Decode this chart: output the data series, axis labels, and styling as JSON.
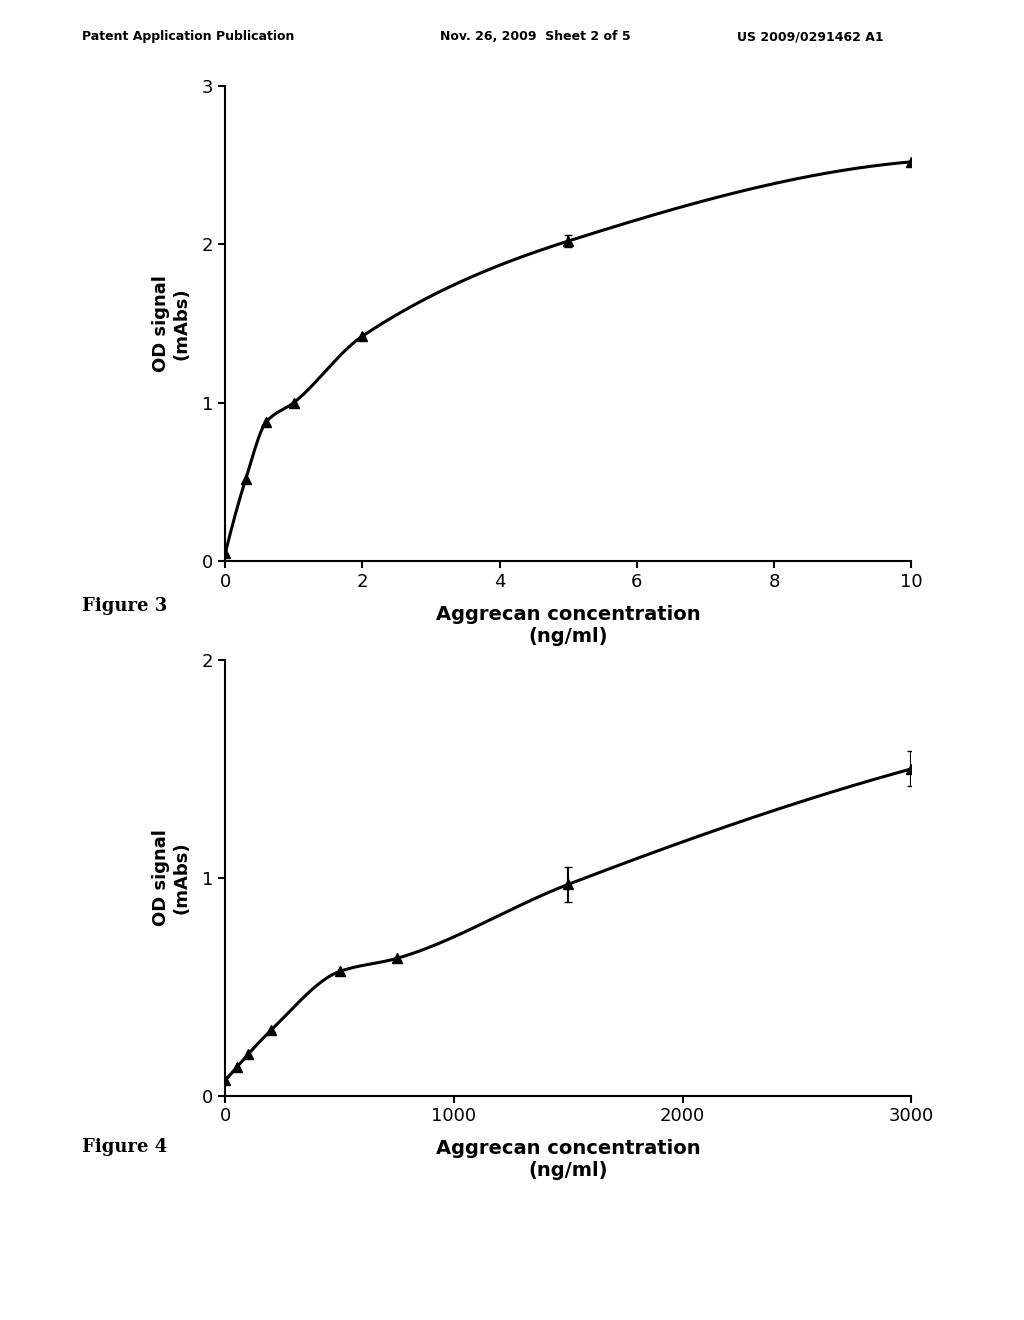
{
  "fig3": {
    "x": [
      0,
      0.3,
      0.6,
      1.0,
      2.0,
      5.0,
      10.0
    ],
    "y": [
      0.05,
      0.52,
      0.88,
      1.0,
      1.42,
      2.02,
      2.52
    ],
    "yerr": [
      0,
      0,
      0,
      0,
      0,
      0.04,
      0
    ],
    "xlabel_line1": "Aggrecan concentration",
    "xlabel_line2": "(ng/ml)",
    "ylabel_line1": "OD signal",
    "ylabel_line2": "(mAbs)",
    "xlim": [
      0,
      10
    ],
    "ylim": [
      0,
      3
    ],
    "xticks": [
      0,
      2,
      4,
      6,
      8,
      10
    ],
    "yticks": [
      0,
      1,
      2,
      3
    ],
    "figure_label": "Figure 3"
  },
  "fig4": {
    "x": [
      0,
      50,
      100,
      200,
      500,
      750,
      1500,
      3000
    ],
    "y": [
      0.07,
      0.13,
      0.19,
      0.3,
      0.57,
      0.63,
      0.97,
      1.5
    ],
    "yerr": [
      0,
      0,
      0,
      0,
      0,
      0,
      0.08,
      0.08
    ],
    "xlabel_line1": "Aggrecan concentration",
    "xlabel_line2": "(ng/ml)",
    "ylabel_line1": "OD signal",
    "ylabel_line2": "(mAbs)",
    "xlim": [
      0,
      3000
    ],
    "ylim": [
      0,
      2
    ],
    "xticks": [
      0,
      1000,
      2000,
      3000
    ],
    "yticks": [
      0,
      1,
      2
    ],
    "figure_label": "Figure 4"
  },
  "header_left": "Patent Application Publication",
  "header_mid": "Nov. 26, 2009  Sheet 2 of 5",
  "header_right": "US 2009/0291462 A1",
  "background_color": "#ffffff",
  "line_color": "#000000",
  "marker_color": "#000000"
}
